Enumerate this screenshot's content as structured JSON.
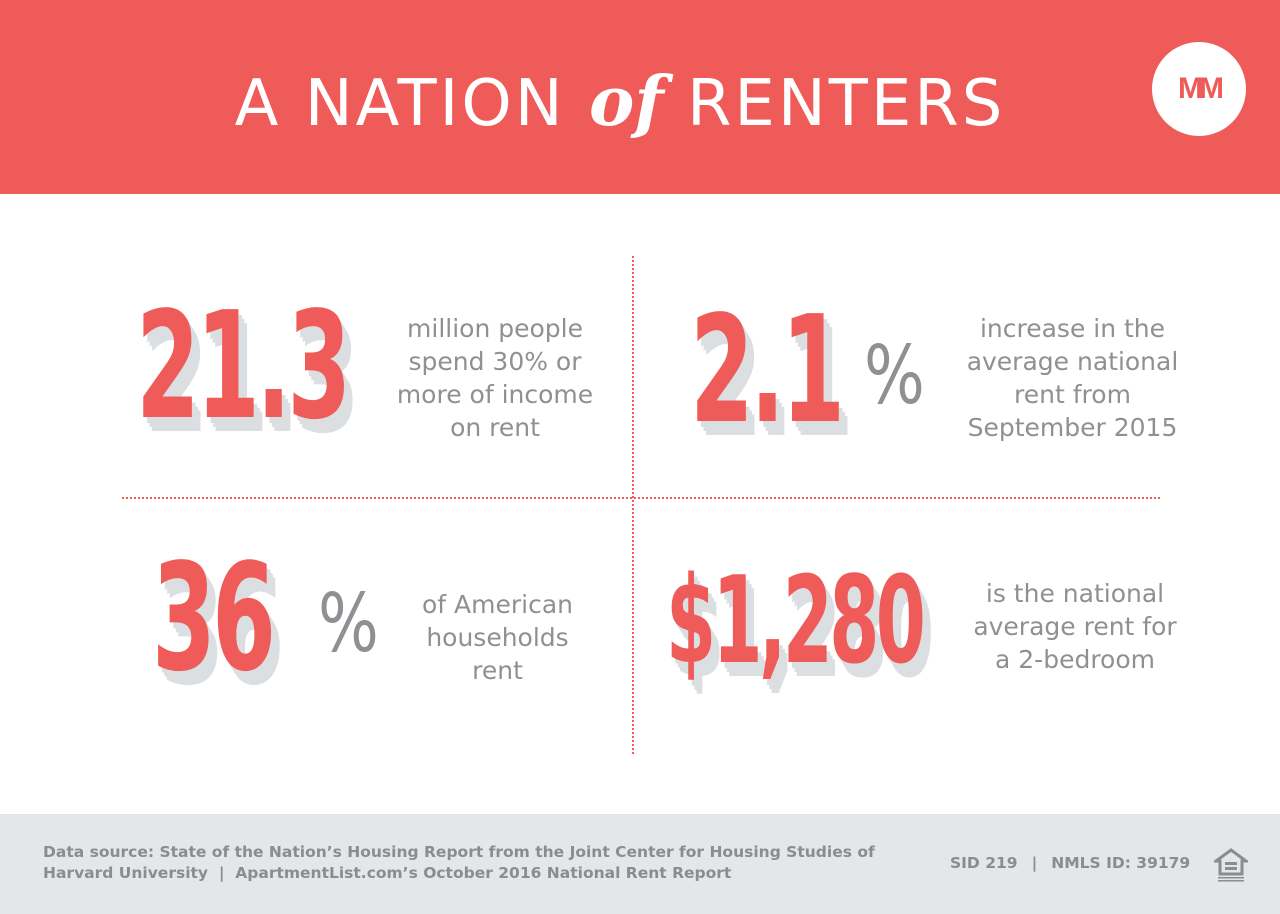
{
  "header": {
    "title_before": "A NATION",
    "title_of": "of",
    "title_after": "RENTERS",
    "logo_text": "MM",
    "background_color": "#ef5b58"
  },
  "stats": [
    {
      "value": "21.3",
      "description": "million people\nspend 30% or\nmore of income\non rent"
    },
    {
      "value": "2.1",
      "unit": "%",
      "description": "increase in the\naverage national\nrent from\nSeptember 2015"
    },
    {
      "value": "36",
      "unit": "%",
      "description": "of American\nhouseholds\nrent"
    },
    {
      "value": "$1,280",
      "description": "is the national\naverage rent for\na 2-bedroom"
    }
  ],
  "footer": {
    "source_line1": "Data source: State of the Nation’s Housing Report from the Joint Center for Housing Studies of",
    "source_line2": "Harvard University  |  ApartmentList.com’s October 2016 National Rent Report",
    "sid": "SID 219",
    "separator": "|",
    "nmls": "NMLS ID: 39179",
    "equal_housing_icon": "equal-housing-opportunity-icon"
  },
  "colors": {
    "accent": "#ef5b58",
    "text_gray": "#8e9093",
    "footer_bg": "#e5e6e8",
    "shadow": "#dcdfe2"
  }
}
